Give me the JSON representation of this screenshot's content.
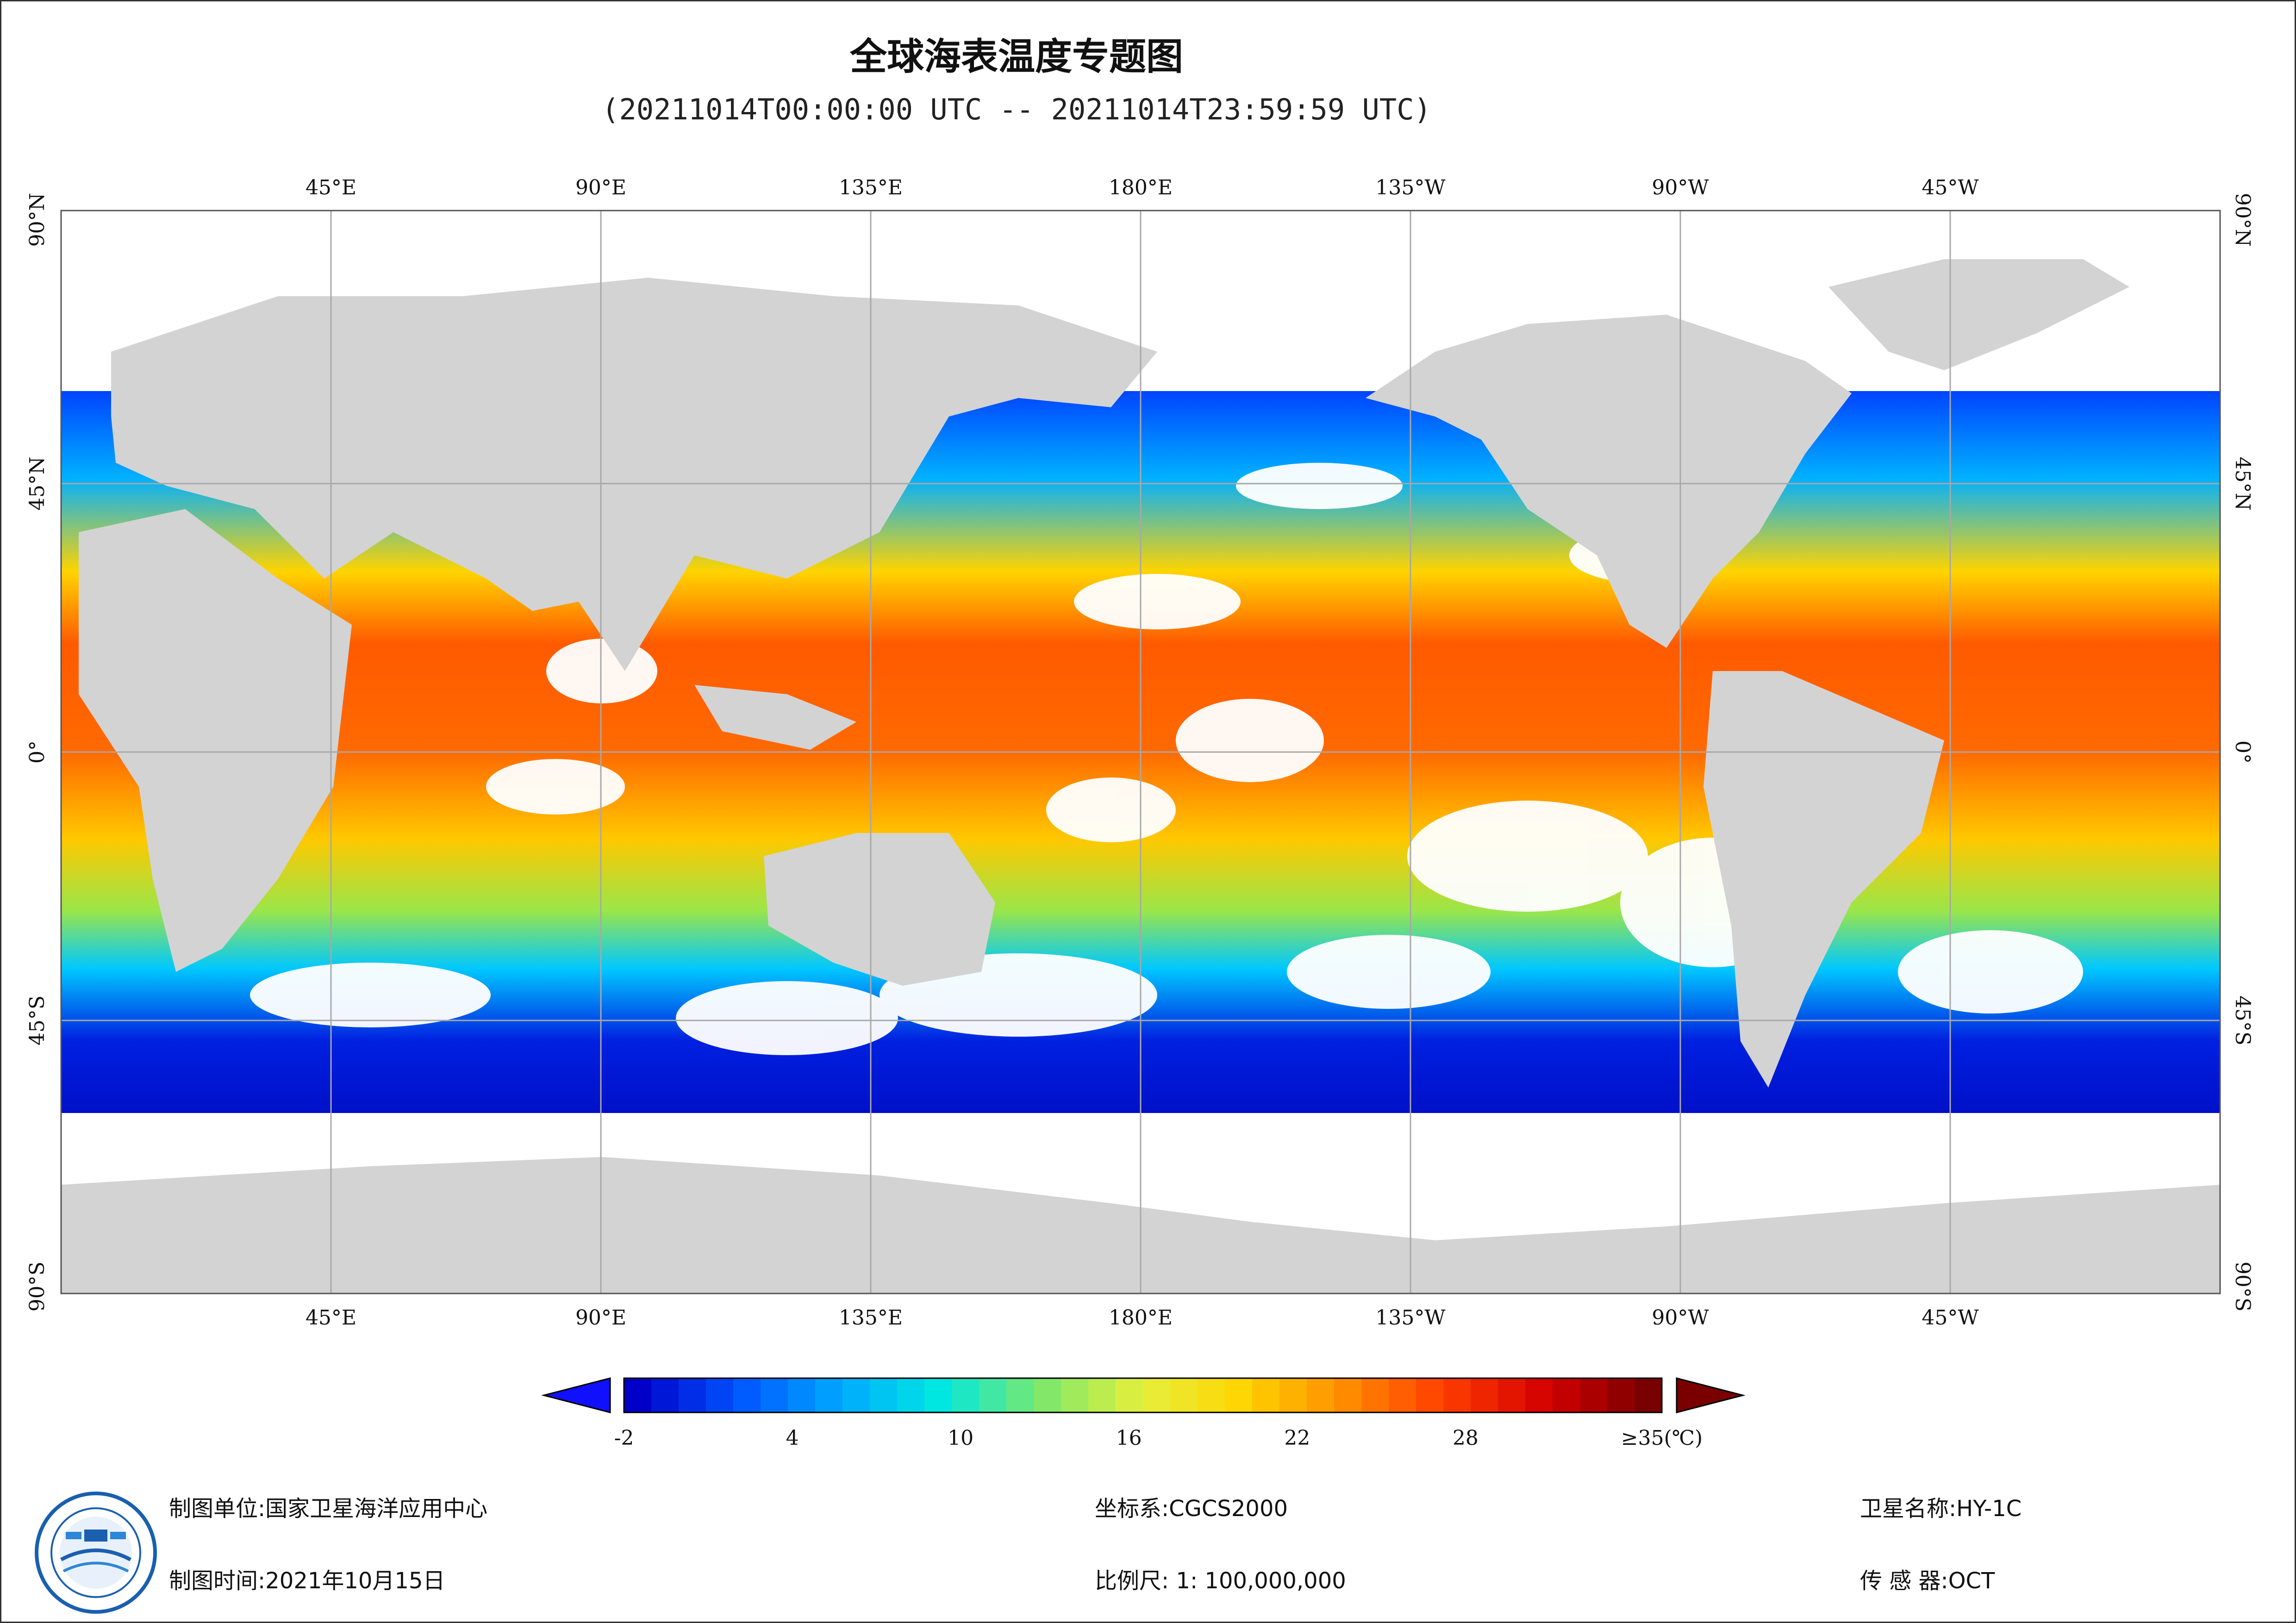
{
  "title": "全球海表温度专题图",
  "subtitle": "(20211014T00:00:00 UTC -- 20211014T23:59:59 UTC)",
  "map": {
    "lon_labels_top": [
      "45°E",
      "90°E",
      "135°E",
      "180°E",
      "135°W",
      "90°W",
      "45°W"
    ],
    "lon_labels_bottom": [
      "45°E",
      "90°E",
      "135°E",
      "180°E",
      "135°W",
      "90°W",
      "45°W"
    ],
    "lat_labels_left": [
      "90°N",
      "45°N",
      "0°",
      "45°S",
      "90°S"
    ],
    "lat_labels_right": [
      "90°N",
      "45°N",
      "0°",
      "45°S",
      "90°S"
    ],
    "colors": {
      "land": "#d3d3d3",
      "cloud": "#ffffff",
      "grid": "#a8a8a8"
    }
  },
  "colorbar": {
    "tick_labels": [
      "-2",
      "4",
      "10",
      "16",
      "22",
      "28",
      "≥35(℃)"
    ],
    "tick_values": [
      -2,
      4,
      10,
      16,
      22,
      28,
      35
    ],
    "min": -2,
    "max": 35,
    "unit": "℃",
    "colors": [
      "#0000c8",
      "#0055ff",
      "#00a8ff",
      "#00e8e0",
      "#7de86a",
      "#e6f03c",
      "#ffd400",
      "#ff8c00",
      "#ff3c00",
      "#d40000",
      "#780000"
    ]
  },
  "footer": {
    "unit_label": "制图单位:国家卫星海洋应用中心",
    "time_label": "制图时间:2021年10月15日",
    "crs_label": "坐标系:CGCS2000",
    "scale_label": "比例尺: 1: 100,000,000",
    "satellite_label": "卫星名称:HY-1C",
    "sensor_label": "传 感 器:OCT"
  },
  "logo": {
    "icon": "satellite-ocean-center-logo"
  }
}
